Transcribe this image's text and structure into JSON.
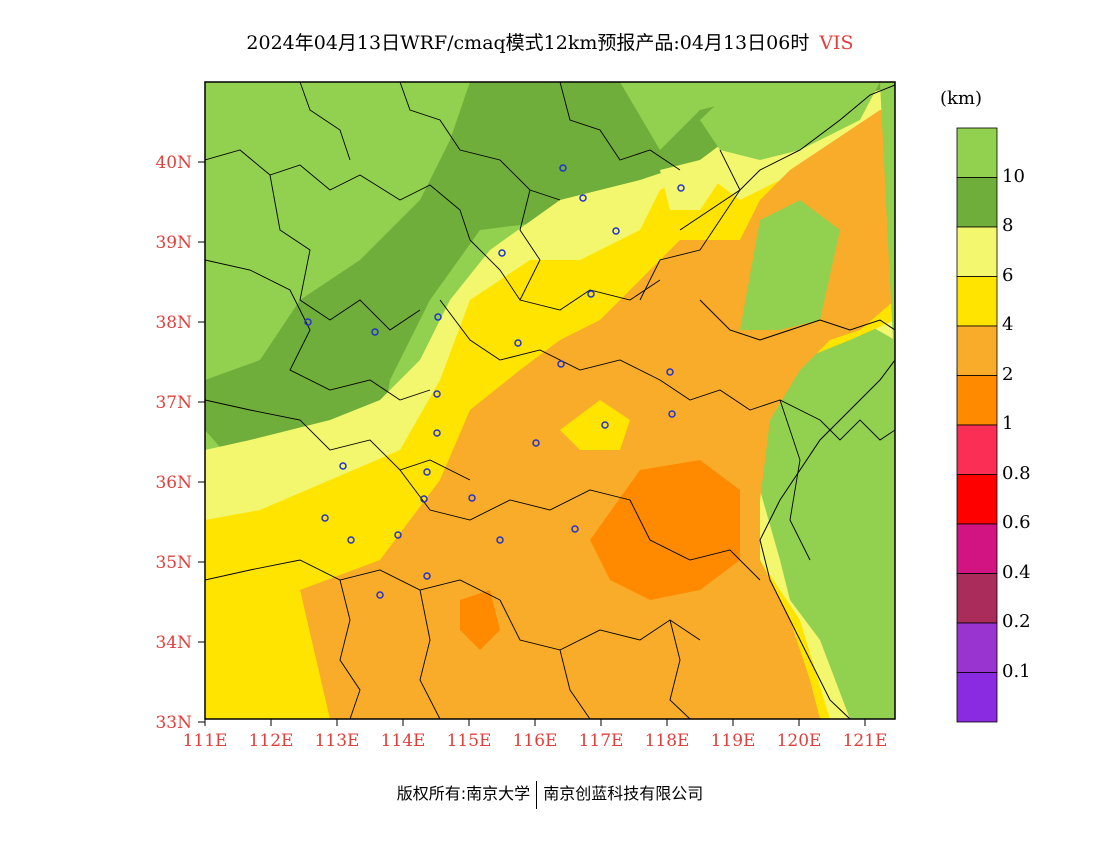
{
  "title": {
    "main": "2024年04月13日WRF/cmaq模式12km预报产品:04月13日06时",
    "variable": "VIS"
  },
  "map": {
    "lat_labels": [
      "40N",
      "39N",
      "38N",
      "37N",
      "36N",
      "35N",
      "34N",
      "33N"
    ],
    "lon_labels": [
      "111E",
      "112E",
      "113E",
      "114E",
      "115E",
      "116E",
      "117E",
      "118E",
      "119E",
      "120E",
      "121E"
    ]
  },
  "colorbar": {
    "unit": "(km)",
    "levels": [
      "10",
      "8",
      "6",
      "4",
      "2",
      "1",
      "0.8",
      "0.6",
      "0.4",
      "0.2",
      "0.1"
    ],
    "colors": [
      "#92d050",
      "#6fae3a",
      "#f3f76e",
      "#ffe400",
      "#f9ac2a",
      "#ff8a00",
      "#fb2e55",
      "#ff0000",
      "#d11482",
      "#aa2c5a",
      "#9a34d0",
      "#8a2be2"
    ]
  },
  "footer": {
    "left": "版权所有:南京大学",
    "right": "南京创蓝科技有限公司"
  }
}
